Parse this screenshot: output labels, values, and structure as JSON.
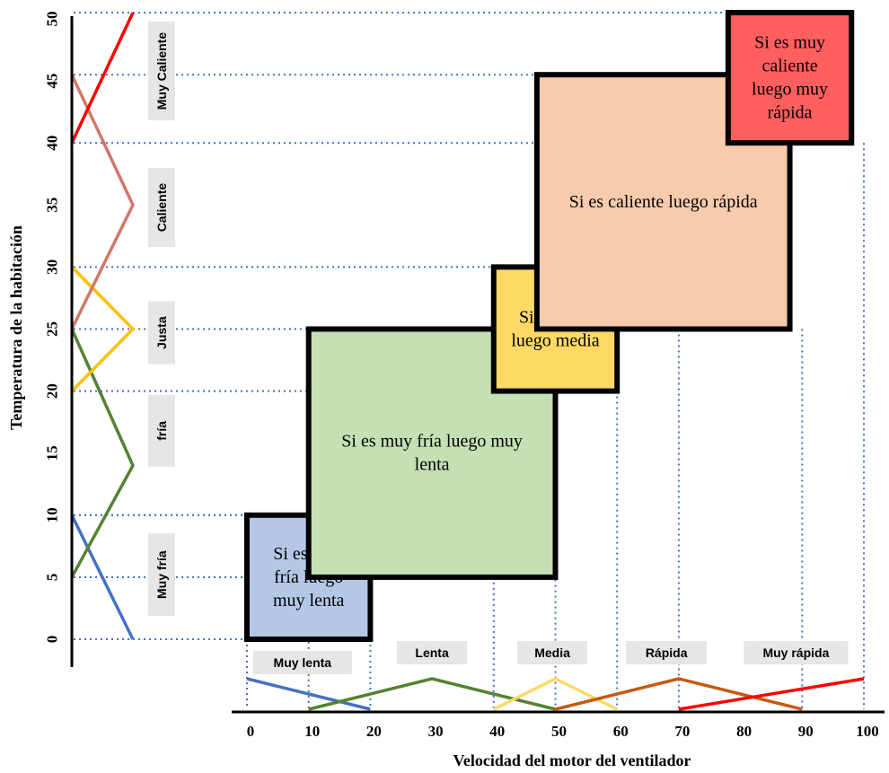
{
  "chart_data": {
    "type": "fuzzy-rule-diagram",
    "xlabel": "Velocidad del motor del ventilador",
    "ylabel": "Temperatura de la habitación",
    "x_ticks": [
      0,
      10,
      20,
      30,
      40,
      50,
      60,
      70,
      80,
      90,
      100
    ],
    "y_ticks": [
      0,
      5,
      10,
      15,
      20,
      25,
      30,
      35,
      40,
      45,
      50
    ],
    "temperature_sets": [
      {
        "name": "Muy fría",
        "color": "#4472c4",
        "points": [
          [
            10,
            0
          ],
          [
            0,
            1
          ]
        ]
      },
      {
        "name": "fría",
        "color": "#548235",
        "points": [
          [
            5,
            0
          ],
          [
            14,
            1
          ],
          [
            25,
            0
          ]
        ]
      },
      {
        "name": "Justa",
        "color": "#ffc000",
        "points": [
          [
            20,
            0
          ],
          [
            25,
            1
          ],
          [
            30,
            0
          ]
        ]
      },
      {
        "name": "Caliente",
        "color": "#d0776a",
        "points": [
          [
            25,
            0
          ],
          [
            35,
            1
          ],
          [
            45.5,
            0
          ]
        ]
      },
      {
        "name": "Muy Caliente",
        "color": "#ff0000",
        "points": [
          [
            40,
            0
          ],
          [
            50.5,
            1
          ]
        ]
      }
    ],
    "speed_sets": [
      {
        "name": "Muy lenta",
        "color": "#4472c4",
        "points": [
          [
            0,
            1
          ],
          [
            20,
            0
          ]
        ]
      },
      {
        "name": "Lenta",
        "color": "#548235",
        "points": [
          [
            10,
            0
          ],
          [
            30,
            1
          ],
          [
            50,
            0
          ]
        ]
      },
      {
        "name": "Media",
        "color": "#ffd966",
        "points": [
          [
            40,
            0
          ],
          [
            50,
            1
          ],
          [
            60,
            0
          ]
        ]
      },
      {
        "name": "Rápida",
        "color": "#c55a11",
        "points": [
          [
            50,
            0
          ],
          [
            70,
            1
          ],
          [
            90,
            0
          ]
        ]
      },
      {
        "name": "Muy rápida",
        "color": "#ff0000",
        "points": [
          [
            70,
            0
          ],
          [
            100,
            1
          ]
        ]
      }
    ],
    "rules": [
      {
        "text": [
          "Si es muy",
          "fría luego",
          "muy lenta"
        ],
        "x": [
          0,
          20
        ],
        "y": [
          0,
          10
        ],
        "fill": "#b4c7e7"
      },
      {
        "text": [
          "Si es muy fría luego muy",
          "lenta"
        ],
        "x": [
          10,
          50
        ],
        "y": [
          5,
          25
        ],
        "fill": "#c5e0b4"
      },
      {
        "text": [
          "Si es justa",
          "luego media"
        ],
        "x": [
          40,
          60
        ],
        "y": [
          20,
          30
        ],
        "fill": "#ffd966"
      },
      {
        "text": [
          "Si es caliente luego rápida"
        ],
        "x": [
          47,
          88
        ],
        "y": [
          25,
          45.5
        ],
        "fill": "#f8cbad"
      },
      {
        "text": [
          "Si es muy",
          "caliente",
          "luego muy",
          "rápida"
        ],
        "x": [
          78,
          98
        ],
        "y": [
          40,
          50.5
        ],
        "fill": "#ff5f5f"
      }
    ]
  }
}
